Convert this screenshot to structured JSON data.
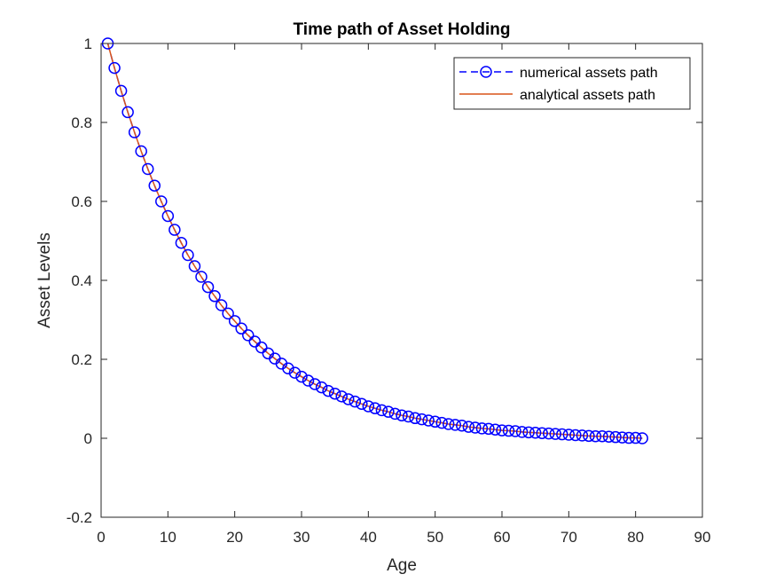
{
  "chart_data": {
    "type": "line",
    "title": "Time path of Asset Holding",
    "xlabel": "Age",
    "ylabel": "Asset Levels",
    "xlim": [
      0,
      90
    ],
    "ylim": [
      -0.2,
      1
    ],
    "xticks": [
      0,
      10,
      20,
      30,
      40,
      50,
      60,
      70,
      80,
      90
    ],
    "yticks": [
      -0.2,
      0,
      0.2,
      0.4,
      0.6,
      0.8,
      1
    ],
    "ytick_labels": [
      "-0.2",
      "0",
      "0.2",
      "0.4",
      "0.6",
      "0.8",
      "1"
    ],
    "grid": false,
    "legend_position": "top-right",
    "series": [
      {
        "name": "numerical assets path",
        "color": "#0000ff",
        "line_style": "dashed",
        "marker": "circle",
        "x": [
          1,
          2,
          3,
          4,
          5,
          6,
          7,
          8,
          9,
          10,
          11,
          12,
          13,
          14,
          15,
          16,
          17,
          18,
          19,
          20,
          21,
          22,
          23,
          24,
          25,
          26,
          27,
          28,
          29,
          30,
          31,
          32,
          33,
          34,
          35,
          36,
          37,
          38,
          39,
          40,
          41,
          42,
          43,
          44,
          45,
          46,
          47,
          48,
          49,
          50,
          51,
          52,
          53,
          54,
          55,
          56,
          57,
          58,
          59,
          60,
          61,
          62,
          63,
          64,
          65,
          66,
          67,
          68,
          69,
          70,
          71,
          72,
          73,
          74,
          75,
          76,
          77,
          78,
          79,
          80,
          81
        ],
        "y": [
          1.0,
          0.938,
          0.88,
          0.826,
          0.775,
          0.727,
          0.682,
          0.64,
          0.6,
          0.563,
          0.528,
          0.495,
          0.464,
          0.436,
          0.409,
          0.383,
          0.36,
          0.337,
          0.316,
          0.297,
          0.278,
          0.261,
          0.245,
          0.23,
          0.215,
          0.202,
          0.189,
          0.177,
          0.166,
          0.156,
          0.146,
          0.137,
          0.129,
          0.12,
          0.113,
          0.106,
          0.099,
          0.093,
          0.087,
          0.081,
          0.076,
          0.071,
          0.067,
          0.062,
          0.058,
          0.055,
          0.051,
          0.048,
          0.045,
          0.042,
          0.039,
          0.036,
          0.034,
          0.032,
          0.029,
          0.027,
          0.025,
          0.024,
          0.022,
          0.02,
          0.019,
          0.018,
          0.016,
          0.015,
          0.014,
          0.013,
          0.012,
          0.011,
          0.01,
          0.009,
          0.008,
          0.007,
          0.006,
          0.005,
          0.005,
          0.004,
          0.003,
          0.002,
          0.001,
          0.001,
          0.0
        ]
      },
      {
        "name": "analytical assets path",
        "color": "#d95319",
        "line_style": "solid",
        "marker": "none",
        "x": [
          1,
          2,
          3,
          4,
          5,
          6,
          7,
          8,
          9,
          10,
          11,
          12,
          13,
          14,
          15,
          16,
          17,
          18,
          19,
          20,
          21,
          22,
          23,
          24,
          25,
          26,
          27,
          28,
          29,
          30,
          31,
          32,
          33,
          34,
          35,
          36,
          37,
          38,
          39,
          40,
          41,
          42,
          43,
          44,
          45,
          46,
          47,
          48,
          49,
          50,
          51,
          52,
          53,
          54,
          55,
          56,
          57,
          58,
          59,
          60,
          61,
          62,
          63,
          64,
          65,
          66,
          67,
          68,
          69,
          70,
          71,
          72,
          73,
          74,
          75,
          76,
          77,
          78,
          79,
          80,
          81
        ],
        "y": [
          1.0,
          0.938,
          0.88,
          0.826,
          0.775,
          0.727,
          0.682,
          0.64,
          0.6,
          0.563,
          0.528,
          0.495,
          0.464,
          0.436,
          0.409,
          0.383,
          0.36,
          0.337,
          0.316,
          0.297,
          0.278,
          0.261,
          0.245,
          0.23,
          0.215,
          0.202,
          0.189,
          0.177,
          0.166,
          0.156,
          0.146,
          0.137,
          0.129,
          0.12,
          0.113,
          0.106,
          0.099,
          0.093,
          0.087,
          0.081,
          0.076,
          0.071,
          0.067,
          0.062,
          0.058,
          0.055,
          0.051,
          0.048,
          0.045,
          0.042,
          0.039,
          0.036,
          0.034,
          0.032,
          0.029,
          0.027,
          0.025,
          0.024,
          0.022,
          0.02,
          0.019,
          0.018,
          0.016,
          0.015,
          0.014,
          0.013,
          0.012,
          0.011,
          0.01,
          0.009,
          0.008,
          0.007,
          0.006,
          0.005,
          0.005,
          0.004,
          0.003,
          0.002,
          0.001,
          0.001,
          0.0
        ]
      }
    ]
  }
}
